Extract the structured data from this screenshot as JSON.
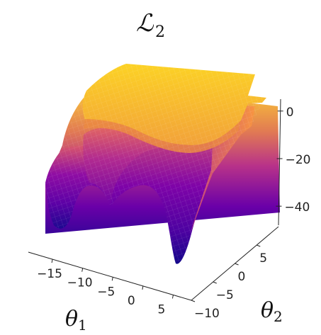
{
  "chart_data": {
    "type": "surface",
    "title": {
      "symbol": "ℒ",
      "sub": "2"
    },
    "xlabel": {
      "symbol": "θ",
      "sub": "1"
    },
    "ylabel": {
      "symbol": "θ",
      "sub": "2"
    },
    "zlabel": "",
    "x_ticks": [
      -15,
      -10,
      -5,
      0,
      5
    ],
    "y_ticks": [
      -10,
      -5,
      0,
      5
    ],
    "z_ticks": [
      0,
      -20,
      -40
    ],
    "xlim": [
      -19,
      8
    ],
    "ylim": [
      -10,
      10
    ],
    "zlim": [
      -48,
      5
    ],
    "colormap": "plasma",
    "surface_shape": "plateau near 0 at high theta_2, two deep valleys (about -47) at low theta_2 near theta_1 = -17 and theta_1 = 3, separated by a ridge around theta_1 = -7",
    "grid": false
  }
}
